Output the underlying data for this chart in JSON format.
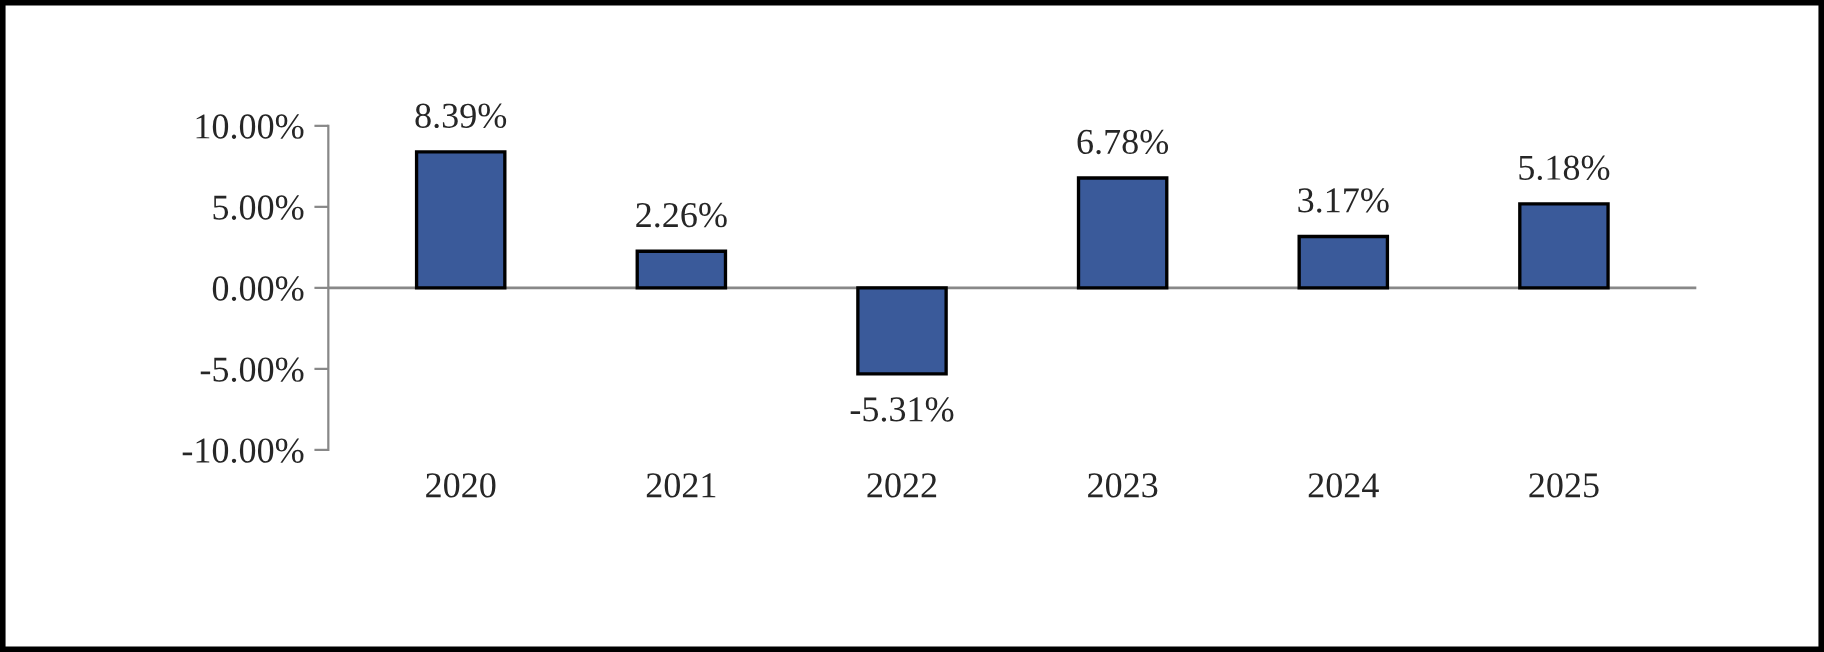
{
  "chart_data": {
    "type": "bar",
    "categories": [
      "2020",
      "2021",
      "2022",
      "2023",
      "2024",
      "2025"
    ],
    "values": [
      8.39,
      2.26,
      -5.31,
      6.78,
      3.17,
      5.18
    ],
    "value_labels": [
      "8.39%",
      "2.26%",
      "-5.31%",
      "6.78%",
      "3.17%",
      "5.18%"
    ],
    "color": "#3a5a9a",
    "ylim": [
      -10,
      10
    ],
    "yticks": [
      {
        "value": -10,
        "label": "-10.00%"
      },
      {
        "value": -5,
        "label": "-5.00%"
      },
      {
        "value": 0,
        "label": "0.00%"
      },
      {
        "value": 5,
        "label": "5.00%"
      },
      {
        "value": 10,
        "label": "10.00%"
      }
    ],
    "ref_lines": [
      {
        "axis": "y",
        "value": 0,
        "color": "#888888"
      }
    ],
    "grid": false,
    "legend": false
  }
}
